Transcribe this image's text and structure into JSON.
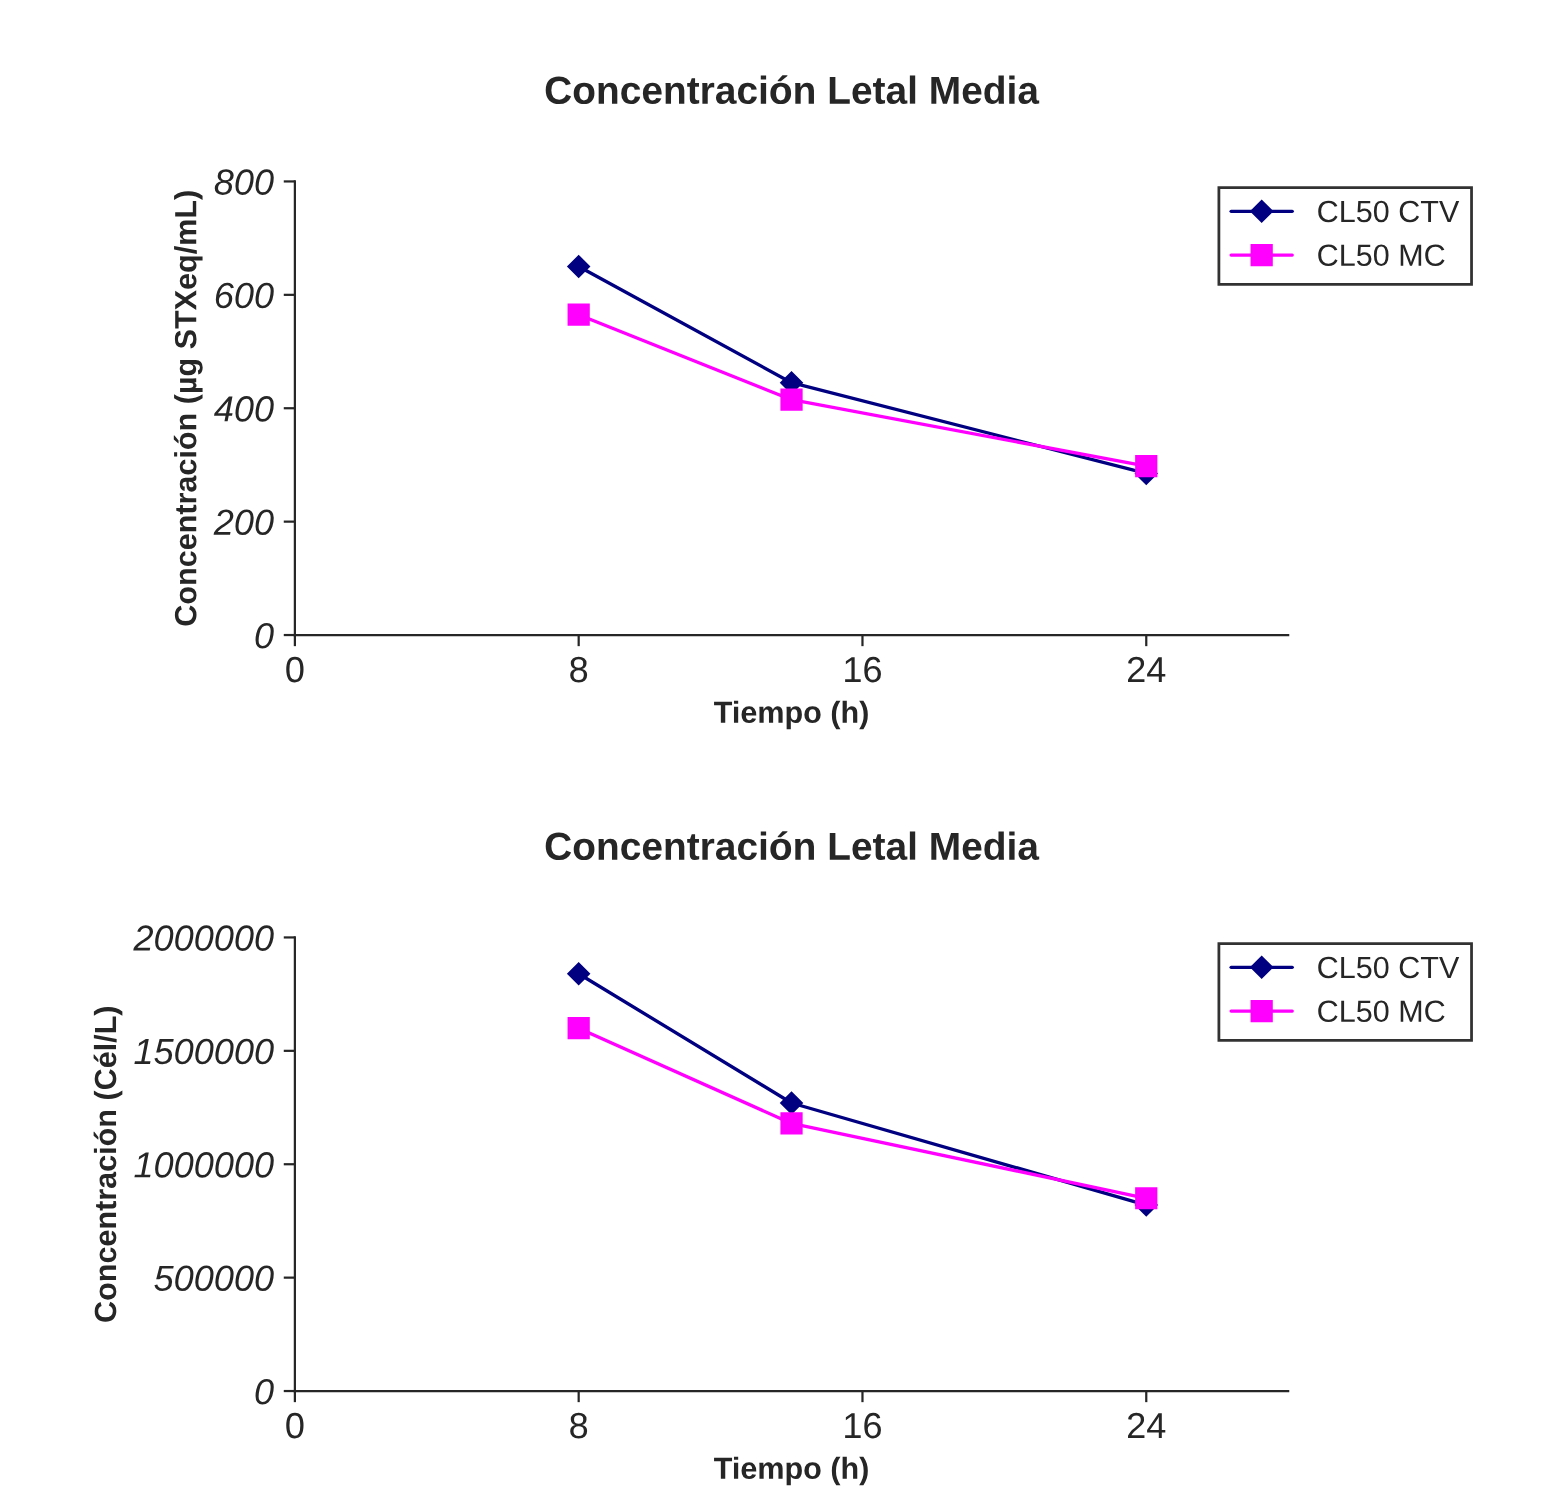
{
  "chart_data": [
    {
      "type": "line",
      "title": "Concentración Letal Media",
      "xlabel": "Tiempo (h)",
      "ylabel": "Concentración (µg STXeq/mL)",
      "x": [
        8,
        14,
        24
      ],
      "xlim": [
        0,
        28
      ],
      "xticks": [
        0,
        8,
        16,
        24
      ],
      "ylim": [
        0,
        800
      ],
      "yticks": [
        0,
        200,
        400,
        600,
        800
      ],
      "grid": false,
      "legend": "top right",
      "series": [
        {
          "name": "CL50 CTV",
          "color": "#000080",
          "marker": "diamond",
          "values": [
            650,
            445,
            285
          ]
        },
        {
          "name": "CL50 MC",
          "color": "#ff00ff",
          "marker": "square",
          "values": [
            565,
            415,
            298
          ]
        }
      ]
    },
    {
      "type": "line",
      "title": "Concentración Letal Media",
      "xlabel": "Tiempo (h)",
      "ylabel": "Concentración (Cél/L)",
      "x": [
        8,
        14,
        24
      ],
      "xlim": [
        0,
        28
      ],
      "xticks": [
        0,
        8,
        16,
        24
      ],
      "ylim": [
        0,
        2000000
      ],
      "yticks": [
        0,
        500000,
        1000000,
        1500000,
        2000000
      ],
      "grid": false,
      "legend": "top right",
      "series": [
        {
          "name": "CL50 CTV",
          "color": "#000080",
          "marker": "diamond",
          "values": [
            1840000,
            1270000,
            820000
          ]
        },
        {
          "name": "CL50 MC",
          "color": "#ff00ff",
          "marker": "square",
          "values": [
            1600000,
            1180000,
            850000
          ]
        }
      ]
    }
  ]
}
